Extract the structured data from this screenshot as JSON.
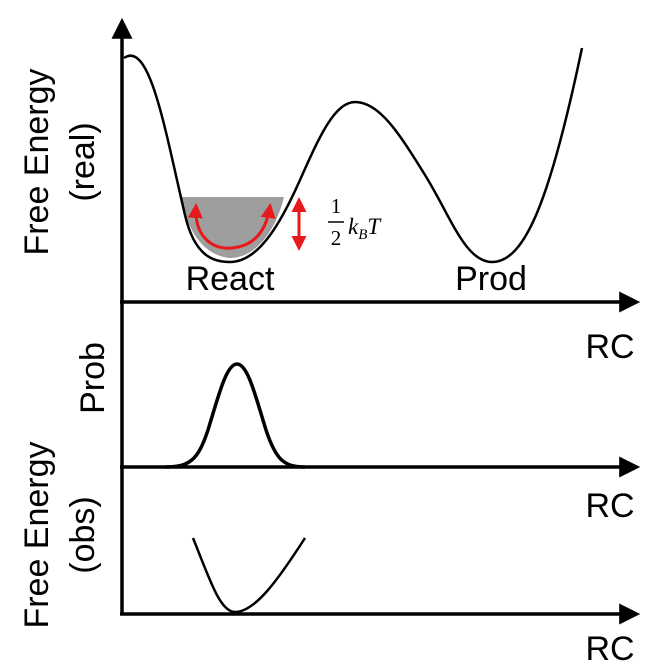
{
  "panels": {
    "top": {
      "ylabel_line1": "Free Energy",
      "ylabel_line2": "(real)",
      "xlabel": "RC",
      "well_left_label": "React",
      "well_right_label": "Prod",
      "annotation": {
        "numerator": "1",
        "denominator": "2",
        "k": "k",
        "sub": "B",
        "T": "T"
      }
    },
    "middle": {
      "ylabel": "Prob",
      "xlabel": "RC"
    },
    "bottom": {
      "ylabel_line1": "Free Energy",
      "ylabel_line2": "(obs)",
      "xlabel": "RC"
    }
  },
  "colors": {
    "curve": "#000000",
    "arrow": "#e8191b",
    "fill": "#9e9e9e"
  }
}
